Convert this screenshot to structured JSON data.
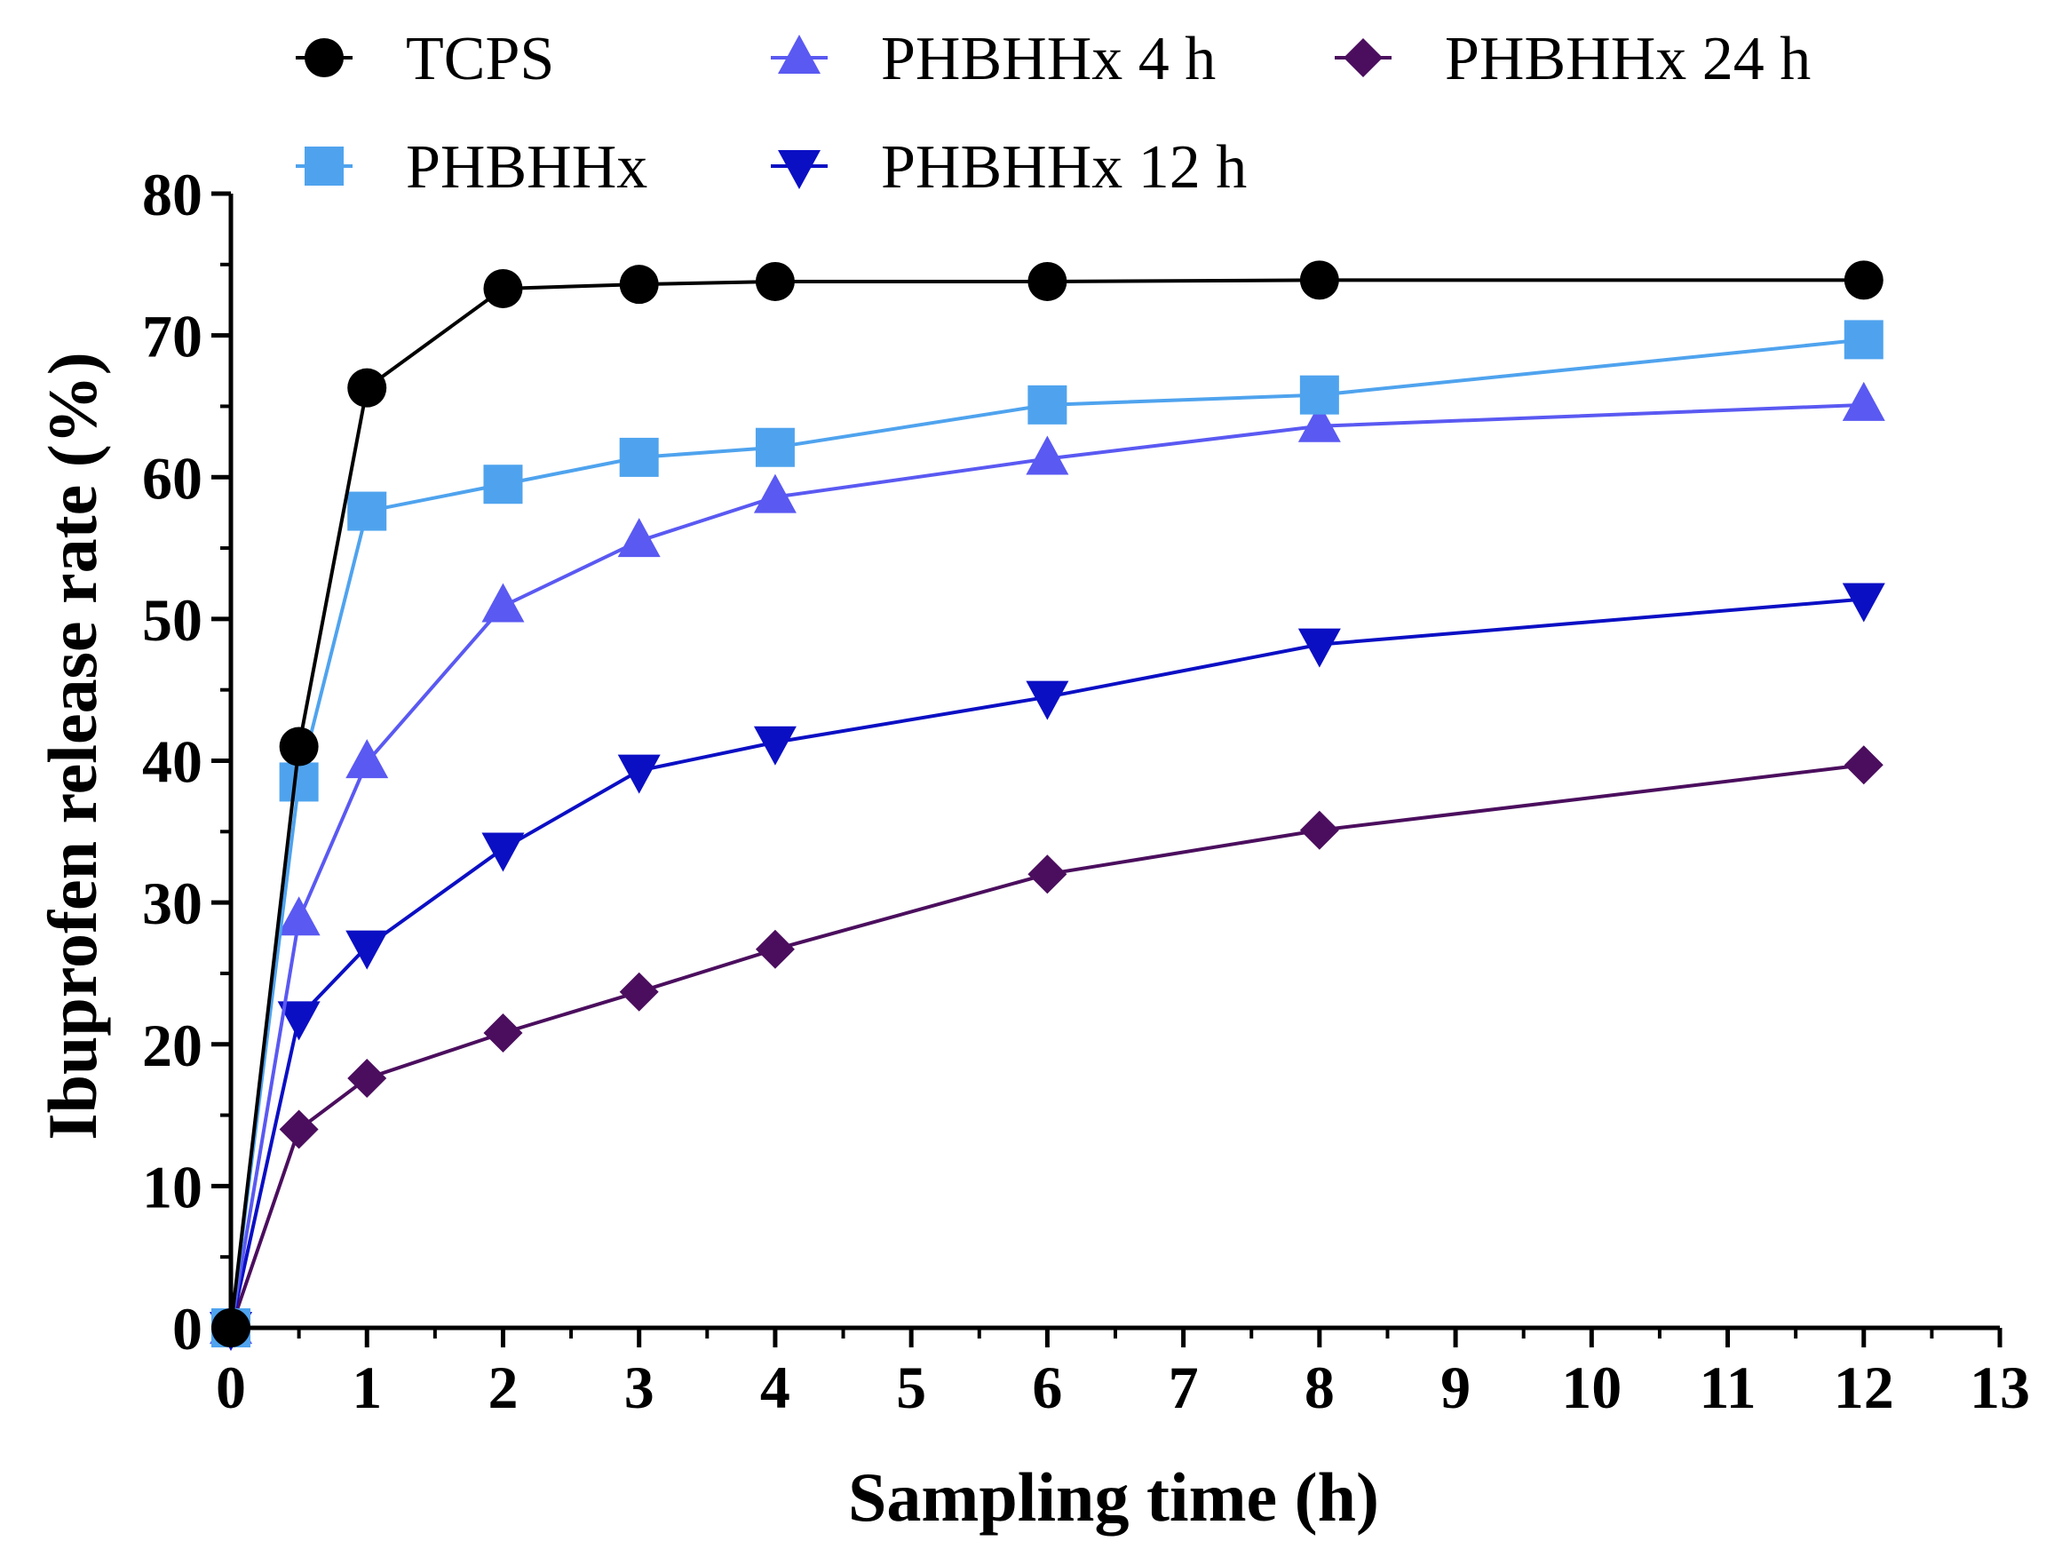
{
  "chart_data": {
    "type": "line",
    "title": "",
    "xlabel": "Sampling time (h)",
    "ylabel": "Ibuprofen release rate (%)",
    "xlim": [
      0,
      13
    ],
    "ylim": [
      0,
      80
    ],
    "x_ticks": [
      0,
      1,
      2,
      3,
      4,
      5,
      6,
      7,
      8,
      9,
      10,
      11,
      12,
      13
    ],
    "y_ticks": [
      0,
      10,
      20,
      30,
      40,
      50,
      60,
      70,
      80
    ],
    "grid": false,
    "legend_position": "top",
    "x": [
      0,
      0.5,
      1,
      2,
      3,
      4,
      6,
      8,
      12
    ],
    "series": [
      {
        "name": "TCPS",
        "marker": "circle",
        "color": "#000000",
        "values": [
          0,
          41,
          66.3,
          73.3,
          73.6,
          73.8,
          73.8,
          73.9,
          73.9
        ]
      },
      {
        "name": "PHBHHx",
        "marker": "square",
        "color": "#4fa3ee",
        "values": [
          0,
          38.5,
          57.6,
          59.5,
          61.4,
          62.1,
          65.1,
          65.8,
          69.7
        ]
      },
      {
        "name": "PHBHHx 4 h",
        "marker": "triangle-up",
        "color": "#5a59f2",
        "values": [
          0,
          28.8,
          39.9,
          50.9,
          55.5,
          58.6,
          61.3,
          63.6,
          65.1
        ]
      },
      {
        "name": "PHBHHx 12 h",
        "marker": "triangle-down",
        "color": "#0b0fc4",
        "values": [
          0,
          21.9,
          26.9,
          33.8,
          39.3,
          41.3,
          44.5,
          48.2,
          51.4
        ]
      },
      {
        "name": "PHBHHx 24 h",
        "marker": "diamond",
        "color": "#4b0e5e",
        "values": [
          0,
          14,
          17.6,
          20.8,
          23.7,
          26.7,
          32,
          35.1,
          39.7
        ]
      }
    ]
  }
}
